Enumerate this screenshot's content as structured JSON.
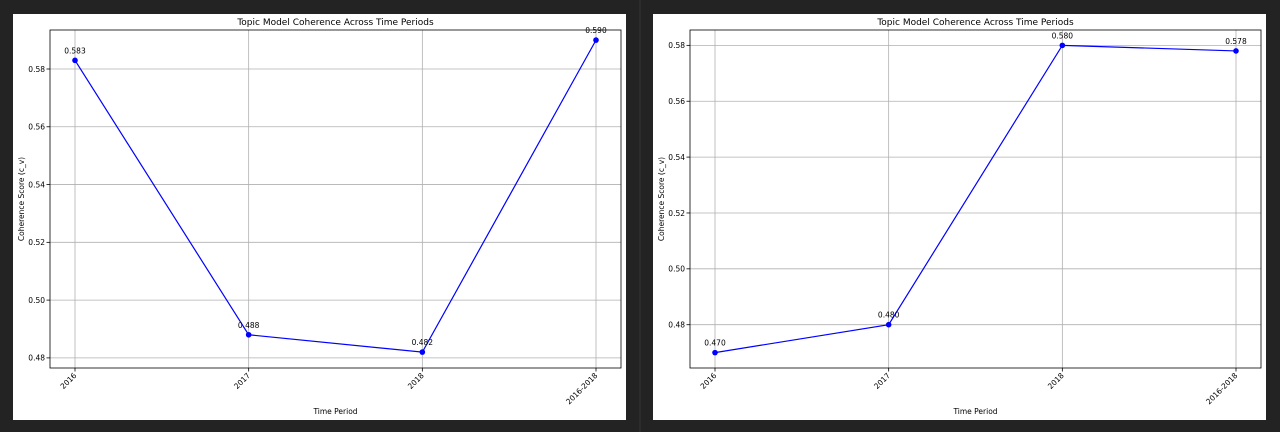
{
  "chart_data": [
    {
      "type": "line",
      "title": "Topic Model Coherence Across Time Periods",
      "xlabel": "Time Period",
      "ylabel": "Coherence Score (c_v)",
      "categories": [
        "2016",
        "2017",
        "2018",
        "2016-2018"
      ],
      "series": [
        {
          "name": "",
          "values": [
            0.583,
            0.488,
            0.482,
            0.59
          ],
          "color": "#0000ff"
        }
      ],
      "data_labels": [
        "0.583",
        "0.488",
        "0.482",
        "0.590"
      ],
      "yticks": [
        "0.48",
        "0.50",
        "0.52",
        "0.54",
        "0.56",
        "0.58"
      ],
      "ylim": [
        0.4765,
        0.5935
      ],
      "grid": true
    },
    {
      "type": "line",
      "title": "Topic Model Coherence Across Time Periods",
      "xlabel": "Time Period",
      "ylabel": "Coherence Score (c_v)",
      "categories": [
        "2016",
        "2017",
        "2018",
        "2016-2018"
      ],
      "series": [
        {
          "name": "",
          "values": [
            0.47,
            0.48,
            0.58,
            0.578
          ],
          "color": "#0000ff"
        }
      ],
      "data_labels": [
        "0.470",
        "0.480",
        "0.580",
        "0.578"
      ],
      "yticks": [
        "0.48",
        "0.50",
        "0.52",
        "0.54",
        "0.56",
        "0.58"
      ],
      "ylim": [
        0.4645,
        0.5855
      ],
      "grid": true
    }
  ]
}
